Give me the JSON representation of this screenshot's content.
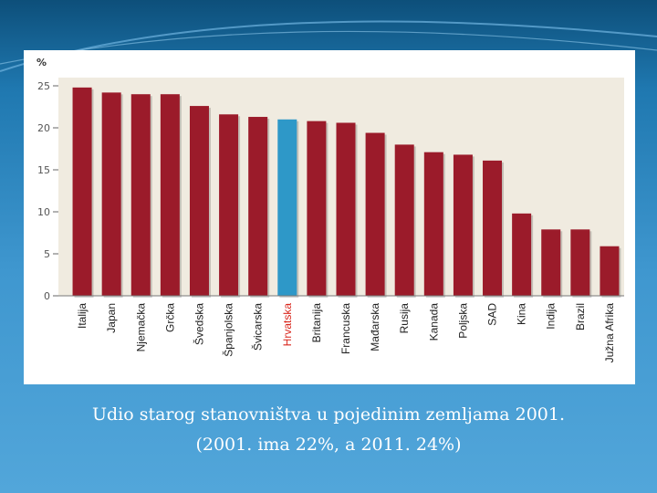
{
  "slide": {
    "caption_line1": "Udio starog stanovništva u pojedinim zemljama 2001.",
    "caption_line2": "(2001. ima 22%, a 2011. 24%)"
  },
  "colors": {
    "bar": "#9b1b2a",
    "highlight_bar": "#2e98c8",
    "plot_background": "#f0ebe0",
    "background": "#3f97cf"
  },
  "chart_data": {
    "type": "bar",
    "ylabel": "%",
    "categories": [
      "Italija",
      "Japan",
      "Njemačka",
      "Grčka",
      "Švedska",
      "Španjolska",
      "Švicarska",
      "Hrvatska",
      "Britanija",
      "Francuska",
      "Mađarska",
      "Rusija",
      "Kanada",
      "Poljska",
      "SAD",
      "Kina",
      "Indija",
      "Brazil",
      "Južna Afrika"
    ],
    "values": [
      24.8,
      24.2,
      24.0,
      24.0,
      22.6,
      21.6,
      21.3,
      21.0,
      20.8,
      20.6,
      19.4,
      18.0,
      17.1,
      16.8,
      16.1,
      9.8,
      7.9,
      7.9,
      5.9
    ],
    "highlight_index": 7,
    "ylim": [
      0,
      25
    ],
    "yticks": [
      0,
      5,
      10,
      15,
      20,
      25
    ],
    "grid": false
  }
}
